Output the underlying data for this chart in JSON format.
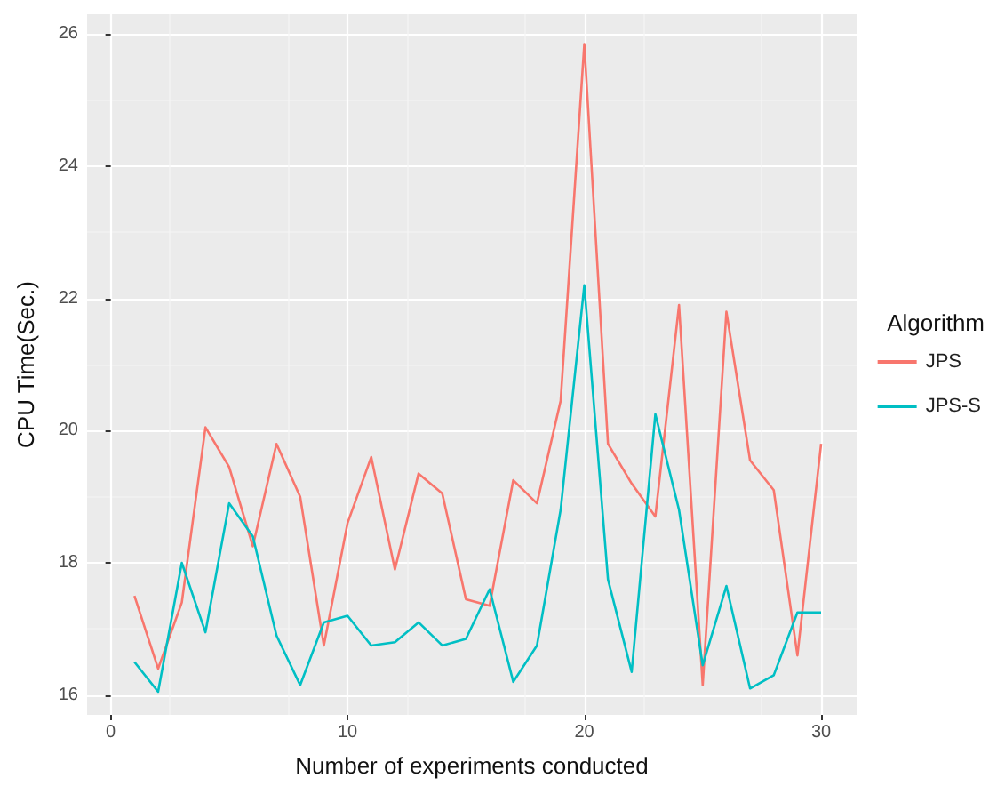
{
  "chart_data": {
    "type": "line",
    "xlabel": "Number of experiments conducted",
    "ylabel": "CPU Time(Sec.)",
    "legend_title": "Algorithm",
    "x": [
      1,
      2,
      3,
      4,
      5,
      6,
      7,
      8,
      9,
      10,
      11,
      12,
      13,
      14,
      15,
      16,
      17,
      18,
      19,
      20,
      21,
      22,
      23,
      24,
      25,
      26,
      27,
      28,
      29,
      30
    ],
    "series": [
      {
        "name": "JPS",
        "color": "#f8766d",
        "values": [
          17.5,
          16.4,
          17.4,
          20.05,
          19.45,
          18.25,
          19.8,
          19.0,
          16.75,
          18.6,
          19.6,
          17.9,
          19.35,
          19.05,
          17.45,
          17.35,
          19.25,
          18.9,
          20.45,
          25.85,
          19.8,
          19.2,
          18.7,
          21.9,
          16.15,
          21.8,
          19.55,
          19.1,
          16.6,
          19.8
        ]
      },
      {
        "name": "JPS-S",
        "color": "#00bfc4",
        "values": [
          16.5,
          16.05,
          18.0,
          16.95,
          18.9,
          18.4,
          16.9,
          16.15,
          17.1,
          17.2,
          16.75,
          16.8,
          17.1,
          16.75,
          16.85,
          17.6,
          16.2,
          16.75,
          18.8,
          22.2,
          17.75,
          16.35,
          20.25,
          18.8,
          16.45,
          17.65,
          16.1,
          16.3,
          17.25,
          17.25
        ]
      }
    ],
    "xlim": [
      -1.0,
      31.5
    ],
    "xticks": [
      0,
      10,
      20,
      30
    ],
    "ylim": [
      15.7,
      26.3
    ],
    "yticks": [
      16,
      18,
      20,
      22,
      24,
      26
    ],
    "grid": true,
    "legend": "right",
    "marker": "none",
    "line_style": "solid"
  }
}
